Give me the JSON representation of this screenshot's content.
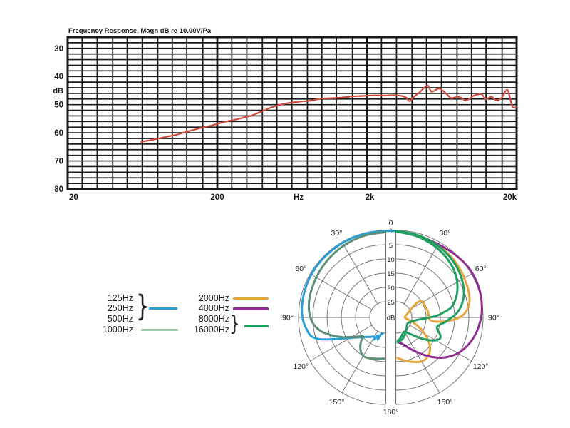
{
  "page": {
    "background": "#ffffff"
  },
  "freq_chart": {
    "title": "Frequency Response, Magn dB re 10.00V/Pa",
    "y_unit": "dB",
    "y_tick_labels": [
      "30",
      "40",
      "50",
      "60",
      "70",
      "80"
    ],
    "x_tick_labels": [
      "20",
      "200",
      "Hz",
      "2k",
      "20k"
    ],
    "grid_color": "#1a1a1a",
    "curve_color": "#cd4b3c"
  },
  "polar_chart": {
    "ring_labels": [
      "0",
      "5",
      "10",
      "15",
      "20",
      "25"
    ],
    "center_label": "dB",
    "top_label": "0",
    "bottom_label": "180°",
    "angle_labels": [
      "30°",
      "60°",
      "90°",
      "120°",
      "150°"
    ],
    "grid_color": "#777777"
  },
  "legend": {
    "col1": [
      "125Hz",
      "250Hz",
      "500Hz",
      "1000Hz"
    ],
    "col2": [
      "2000Hz",
      "4000Hz",
      "8000Hz",
      "16000Hz"
    ],
    "brace": "}",
    "swatch_colors": {
      "low_group": "#2a9fd6",
      "f1000": "#a3ccb3",
      "f2000": "#e7a63b",
      "f4000": "#8f3091",
      "high_group": "#219e61"
    }
  },
  "chart_data": [
    {
      "type": "line",
      "title": "Frequency Response, Magn dB re 10.00V/Pa",
      "x_scale": "log",
      "xlabel": "Hz",
      "ylabel": "dB",
      "x_range": [
        20,
        20000
      ],
      "y_range": [
        26,
        80
      ],
      "y_axis_inverted": true,
      "y_ticks": [
        30,
        40,
        50,
        60,
        70,
        80
      ],
      "y_grid_step_db": 2,
      "x_major_ticks": [
        20,
        200,
        2000,
        20000
      ],
      "x_minor_ticks_per_decade": [
        25,
        31.5,
        40,
        50,
        63,
        80,
        100,
        125,
        160
      ],
      "grid": "on",
      "series": [
        {
          "name": "response",
          "color": "#cd4b3c",
          "points": [
            [
              62,
              63.2
            ],
            [
              70,
              62.7
            ],
            [
              80,
              62.1
            ],
            [
              92,
              61.4
            ],
            [
              106,
              60.7
            ],
            [
              122,
              59.8
            ],
            [
              140,
              58.9
            ],
            [
              160,
              58.1
            ],
            [
              183,
              57.4
            ],
            [
              200,
              56.8
            ],
            [
              230,
              56.0
            ],
            [
              265,
              55.3
            ],
            [
              305,
              54.5
            ],
            [
              350,
              53.6
            ],
            [
              400,
              52.3
            ],
            [
              460,
              51.0
            ],
            [
              530,
              50.0
            ],
            [
              620,
              49.3
            ],
            [
              720,
              48.9
            ],
            [
              840,
              48.6
            ],
            [
              980,
              47.9
            ],
            [
              1150,
              47.7
            ],
            [
              1350,
              47.5
            ],
            [
              1600,
              47.1
            ],
            [
              1900,
              46.9
            ],
            [
              2250,
              46.7
            ],
            [
              2650,
              46.8
            ],
            [
              3050,
              46.6
            ],
            [
              3400,
              46.9
            ],
            [
              3650,
              47.5
            ],
            [
              3850,
              48.8
            ],
            [
              4100,
              47.3
            ],
            [
              4500,
              45.6
            ],
            [
              5080,
              43.2
            ],
            [
              5400,
              45.4
            ],
            [
              6100,
              44.3
            ],
            [
              6850,
              46.4
            ],
            [
              7350,
              47.7
            ],
            [
              8200,
              47.2
            ],
            [
              9200,
              48.5
            ],
            [
              10300,
              46.9
            ],
            [
              11600,
              46.3
            ],
            [
              12500,
              48.0
            ],
            [
              13600,
              47.2
            ],
            [
              14700,
              48.5
            ],
            [
              16000,
              47.4
            ],
            [
              17400,
              44.8
            ],
            [
              18700,
              50.6
            ],
            [
              19800,
              50.9
            ]
          ]
        }
      ]
    },
    {
      "type": "polar",
      "unit": "dB",
      "radial_ticks": [
        0,
        5,
        10,
        15,
        20,
        25
      ],
      "radial_max_db": 30,
      "angle_labels_deg": [
        0,
        30,
        60,
        90,
        120,
        150,
        180
      ],
      "series": [
        {
          "name": "125-500Hz",
          "legend_labels": [
            "125Hz",
            "250Hz",
            "500Hz"
          ],
          "color": "#2a9fd6",
          "side": "left",
          "bridge_top": true,
          "points": [
            [
              0,
              0.2
            ],
            [
              12,
              0.3
            ],
            [
              25,
              0.3
            ],
            [
              38,
              0.4
            ],
            [
              50,
              0.4
            ],
            [
              62,
              0.5
            ],
            [
              72,
              0.7
            ],
            [
              81,
              0.9
            ],
            [
              88,
              1.2
            ],
            [
              94,
              1.8
            ],
            [
              99,
              2.6
            ],
            [
              104,
              3.6
            ],
            [
              108,
              6
            ],
            [
              111,
              9
            ],
            [
              114,
              12
            ],
            [
              118,
              15
            ],
            [
              123,
              17.5
            ],
            [
              129,
              19.5
            ],
            [
              136,
              21
            ],
            [
              143,
              22
            ],
            [
              149,
              22.7
            ],
            [
              153,
              21.8
            ],
            [
              157,
              23.7
            ],
            [
              161,
              22.3
            ],
            [
              165,
              24.3
            ],
            [
              170,
              24.7
            ]
          ]
        },
        {
          "name": "1000Hz",
          "legend_labels": [
            "1000Hz"
          ],
          "color": "#5e9078",
          "side": "left",
          "points": [
            [
              0,
              0.6
            ],
            [
              14,
              0.9
            ],
            [
              28,
              1.3
            ],
            [
              42,
              1.8
            ],
            [
              55,
              2.3
            ],
            [
              66,
              2.7
            ],
            [
              76,
              3
            ],
            [
              84,
              3.5
            ],
            [
              91,
              4.3
            ],
            [
              97,
              5.6
            ],
            [
              103,
              7.8
            ],
            [
              109,
              11
            ],
            [
              115,
              14.2
            ],
            [
              120,
              16.8
            ],
            [
              125,
              18.8
            ],
            [
              129,
              20.2
            ],
            [
              133,
              19
            ],
            [
              138,
              17.3
            ],
            [
              144,
              15.8
            ],
            [
              150,
              14.9
            ],
            [
              158,
              15.1
            ],
            [
              166,
              15.6
            ],
            [
              173,
              15.9
            ],
            [
              178,
              16.1
            ]
          ]
        },
        {
          "name": "2000Hz",
          "legend_labels": [
            "2000Hz"
          ],
          "color": "#e7a63b",
          "side": "right",
          "points": [
            [
              0,
              0.4
            ],
            [
              13,
              0.7
            ],
            [
              26,
              1.1
            ],
            [
              38,
              1.6
            ],
            [
              48,
              2.1
            ],
            [
              57,
              2.7
            ],
            [
              65,
              3.2
            ],
            [
              72,
              3.6
            ],
            [
              78,
              4.2
            ],
            [
              83,
              5.2
            ],
            [
              87,
              6.6
            ],
            [
              90,
              8.4
            ],
            [
              93,
              11
            ],
            [
              95,
              14
            ],
            [
              96,
              17
            ],
            [
              94,
              18.6
            ],
            [
              88,
              19
            ],
            [
              79,
              19.2
            ],
            [
              69,
              19.6
            ],
            [
              61,
              19.6
            ],
            [
              56,
              20.3
            ],
            [
              55,
              21.8
            ],
            [
              58,
              23.6
            ],
            [
              64,
              25.2
            ],
            [
              73,
              26.5
            ],
            [
              83,
              27.3
            ],
            [
              92,
              27.4
            ],
            [
              98,
              26.6
            ],
            [
              104,
              25
            ],
            [
              110,
              23
            ],
            [
              117,
              20.2
            ],
            [
              124,
              17.3
            ],
            [
              131,
              14.8
            ],
            [
              138,
              13.2
            ],
            [
              145,
              12.6
            ],
            [
              152,
              12.9
            ],
            [
              159,
              13.8
            ],
            [
              167,
              14.9
            ],
            [
              174,
              15.8
            ],
            [
              178,
              16.3
            ]
          ]
        },
        {
          "name": "4000Hz",
          "legend_labels": [
            "4000Hz"
          ],
          "color": "#8f3091",
          "side": "right",
          "points": [
            [
              0,
              0.4
            ],
            [
              12,
              0.8
            ],
            [
              24,
              1
            ],
            [
              35,
              0.7
            ],
            [
              45,
              0.2
            ],
            [
              55,
              -0.3
            ],
            [
              65,
              -0.4
            ],
            [
              75,
              -0.2
            ],
            [
              85,
              0.3
            ],
            [
              92,
              0.9
            ],
            [
              100,
              1.8
            ],
            [
              107,
              2.8
            ],
            [
              113,
              3.9
            ],
            [
              119,
              5.2
            ],
            [
              125,
              6.9
            ],
            [
              131,
              9
            ],
            [
              137,
              11.5
            ],
            [
              143,
              14
            ],
            [
              149,
              16.3
            ],
            [
              155,
              18.2
            ],
            [
              161,
              19.8
            ],
            [
              167,
              21
            ],
            [
              173,
              21.6
            ],
            [
              177,
              21.9
            ]
          ]
        },
        {
          "name": "8000Hz",
          "legend_labels": [
            "8000Hz"
          ],
          "color": "#219e61",
          "side": "right",
          "points": [
            [
              0,
              0.2
            ],
            [
              12,
              0.6
            ],
            [
              24,
              1.1
            ],
            [
              35,
              1.7
            ],
            [
              45,
              2.4
            ],
            [
              54,
              3.2
            ],
            [
              62,
              4.1
            ],
            [
              70,
              5.2
            ],
            [
              77,
              6.6
            ],
            [
              83,
              8.2
            ],
            [
              88,
              10
            ],
            [
              92,
              12
            ],
            [
              95,
              13
            ],
            [
              99,
              14.8
            ],
            [
              103,
              15.8
            ],
            [
              107,
              15.2
            ],
            [
              111,
              14
            ],
            [
              115,
              13.4
            ],
            [
              119,
              14.2
            ],
            [
              124,
              16.2
            ],
            [
              129,
              18.6
            ],
            [
              134,
              21
            ],
            [
              140,
              23
            ],
            [
              147,
              24.3
            ],
            [
              155,
              24.6
            ],
            [
              163,
              23.8
            ],
            [
              170,
              22.9
            ],
            [
              176,
              22.4
            ]
          ]
        },
        {
          "name": "16000Hz",
          "legend_labels": [
            "16000Hz"
          ],
          "color": "#219e61",
          "side": "right",
          "points": [
            [
              0,
              0.4
            ],
            [
              14,
              1.1
            ],
            [
              27,
              2
            ],
            [
              39,
              3
            ],
            [
              50,
              4.2
            ],
            [
              59,
              5.6
            ],
            [
              67,
              7.2
            ],
            [
              74,
              9
            ],
            [
              80,
              11
            ],
            [
              85,
              14.5
            ],
            [
              88,
              16.5
            ],
            [
              90,
              18.8
            ],
            [
              93,
              21
            ],
            [
              96,
              22.8
            ],
            [
              100,
              24
            ],
            [
              105,
              25
            ],
            [
              111,
              25.6
            ],
            [
              118,
              26
            ],
            [
              126,
              25.8
            ],
            [
              135,
              25.3
            ],
            [
              145,
              24.5
            ],
            [
              155,
              23.5
            ],
            [
              164,
              22.6
            ],
            [
              172,
              22
            ],
            [
              177,
              21.8
            ]
          ]
        }
      ]
    }
  ]
}
